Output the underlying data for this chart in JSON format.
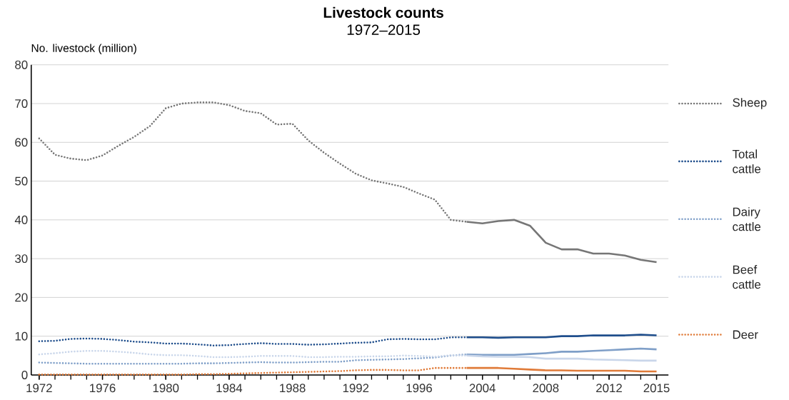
{
  "chart_data": {
    "type": "line",
    "title": "Livestock counts",
    "subtitle": "1972–2015",
    "ylabel": "No. livestock (million)",
    "categories": [
      "1972",
      null,
      null,
      null,
      "1976",
      null,
      null,
      null,
      "1980",
      null,
      null,
      null,
      "1984",
      null,
      null,
      null,
      "1988",
      null,
      null,
      null,
      "1992",
      null,
      null,
      null,
      "1996",
      null,
      null,
      null,
      "2004",
      null,
      null,
      null,
      "2008",
      null,
      null,
      null,
      "2012",
      null,
      null,
      "2015"
    ],
    "ylim": [
      0,
      80
    ],
    "yticks": [
      0,
      10,
      20,
      30,
      40,
      50,
      60,
      70,
      80
    ],
    "grid": "y",
    "legend": "right",
    "marker": "none",
    "series": [
      {
        "name": "Sheep",
        "color": "#767676",
        "line_style": "dotted",
        "values": [
          61.0,
          56.8,
          55.8,
          55.4,
          56.6,
          59.1,
          61.4,
          64.2,
          68.8,
          70.0,
          70.3,
          70.3,
          69.6,
          68.1,
          67.5,
          64.6,
          64.8,
          60.5,
          57.3,
          54.5,
          51.9,
          50.2,
          49.4,
          48.5,
          46.8,
          45.2,
          40.0,
          39.5,
          null,
          null,
          null,
          null,
          null,
          null,
          null,
          null,
          null,
          null,
          null,
          null
        ]
      },
      {
        "color": "#767676",
        "line_style": "solid",
        "values": [
          null,
          null,
          null,
          null,
          null,
          null,
          null,
          null,
          null,
          null,
          null,
          null,
          null,
          null,
          null,
          null,
          null,
          null,
          null,
          null,
          null,
          null,
          null,
          null,
          null,
          null,
          null,
          39.5,
          39.1,
          39.7,
          40.0,
          38.5,
          34.1,
          32.4,
          32.4,
          31.3,
          31.3,
          30.8,
          29.7,
          29.1
        ]
      },
      {
        "name": "Total cattle",
        "color": "#1f4e8c",
        "line_style": "dotted",
        "values": [
          8.7,
          8.8,
          9.3,
          9.4,
          9.3,
          9.0,
          8.6,
          8.4,
          8.1,
          8.1,
          7.9,
          7.6,
          7.7,
          8.0,
          8.2,
          8.0,
          8.0,
          7.8,
          7.9,
          8.1,
          8.3,
          8.4,
          9.2,
          9.3,
          9.2,
          9.2,
          9.7,
          9.7,
          null,
          null,
          null,
          null,
          null,
          null,
          null,
          null,
          null,
          null,
          null,
          null
        ]
      },
      {
        "color": "#1f4e8c",
        "line_style": "solid",
        "values": [
          null,
          null,
          null,
          null,
          null,
          null,
          null,
          null,
          null,
          null,
          null,
          null,
          null,
          null,
          null,
          null,
          null,
          null,
          null,
          null,
          null,
          null,
          null,
          null,
          null,
          null,
          null,
          9.7,
          9.7,
          9.6,
          9.7,
          9.7,
          9.7,
          10.0,
          10.0,
          10.2,
          10.2,
          10.2,
          10.4,
          10.2
        ]
      },
      {
        "name": "Dairy cattle",
        "color": "#7f9fc8",
        "line_style": "dotted",
        "values": [
          3.2,
          3.1,
          3.0,
          2.9,
          2.9,
          2.9,
          2.9,
          2.9,
          2.9,
          2.9,
          3.0,
          3.0,
          3.1,
          3.2,
          3.3,
          3.2,
          3.2,
          3.3,
          3.4,
          3.4,
          3.8,
          3.9,
          4.0,
          4.1,
          4.3,
          4.5,
          5.0,
          5.3,
          null,
          null,
          null,
          null,
          null,
          null,
          null,
          null,
          null,
          null,
          null,
          null
        ]
      },
      {
        "color": "#7f9fc8",
        "line_style": "solid",
        "values": [
          null,
          null,
          null,
          null,
          null,
          null,
          null,
          null,
          null,
          null,
          null,
          null,
          null,
          null,
          null,
          null,
          null,
          null,
          null,
          null,
          null,
          null,
          null,
          null,
          null,
          null,
          null,
          5.3,
          5.2,
          5.2,
          5.2,
          5.4,
          5.6,
          6.0,
          6.0,
          6.2,
          6.4,
          6.6,
          6.8,
          6.6
        ]
      },
      {
        "name": "Beef cattle",
        "color": "#c9d6ea",
        "line_style": "dotted",
        "values": [
          5.3,
          5.6,
          6.0,
          6.2,
          6.2,
          6.0,
          5.7,
          5.3,
          5.1,
          5.1,
          4.9,
          4.6,
          4.6,
          4.7,
          4.9,
          4.9,
          4.9,
          4.6,
          4.6,
          4.7,
          4.7,
          4.8,
          4.8,
          5.0,
          4.9,
          4.7,
          5.1,
          5.0,
          null,
          null,
          null,
          null,
          null,
          null,
          null,
          null,
          null,
          null,
          null,
          null
        ]
      },
      {
        "color": "#c9d6ea",
        "line_style": "solid",
        "values": [
          null,
          null,
          null,
          null,
          null,
          null,
          null,
          null,
          null,
          null,
          null,
          null,
          null,
          null,
          null,
          null,
          null,
          null,
          null,
          null,
          null,
          null,
          null,
          null,
          null,
          null,
          null,
          5.0,
          4.8,
          4.7,
          4.7,
          4.6,
          4.2,
          4.2,
          4.2,
          4.0,
          3.9,
          3.8,
          3.7,
          3.7
        ]
      },
      {
        "name": "Deer",
        "color": "#e07b39",
        "line_style": "dotted",
        "values": [
          0.1,
          0.1,
          0.1,
          0.1,
          0.1,
          0.1,
          0.1,
          0.1,
          0.1,
          0.1,
          0.2,
          0.2,
          0.3,
          0.4,
          0.5,
          0.6,
          0.7,
          0.8,
          0.9,
          1.0,
          1.2,
          1.3,
          1.3,
          1.2,
          1.2,
          1.8,
          1.8,
          1.8,
          null,
          null,
          null,
          null,
          null,
          null,
          null,
          null,
          null,
          null,
          null,
          null
        ]
      },
      {
        "color": "#e07b39",
        "line_style": "solid",
        "values": [
          null,
          null,
          null,
          null,
          null,
          null,
          null,
          null,
          null,
          null,
          null,
          null,
          null,
          null,
          null,
          null,
          null,
          null,
          null,
          null,
          null,
          null,
          null,
          null,
          null,
          null,
          null,
          1.8,
          1.8,
          1.8,
          1.6,
          1.4,
          1.2,
          1.2,
          1.1,
          1.1,
          1.1,
          1.1,
          0.9,
          0.9
        ]
      }
    ]
  }
}
